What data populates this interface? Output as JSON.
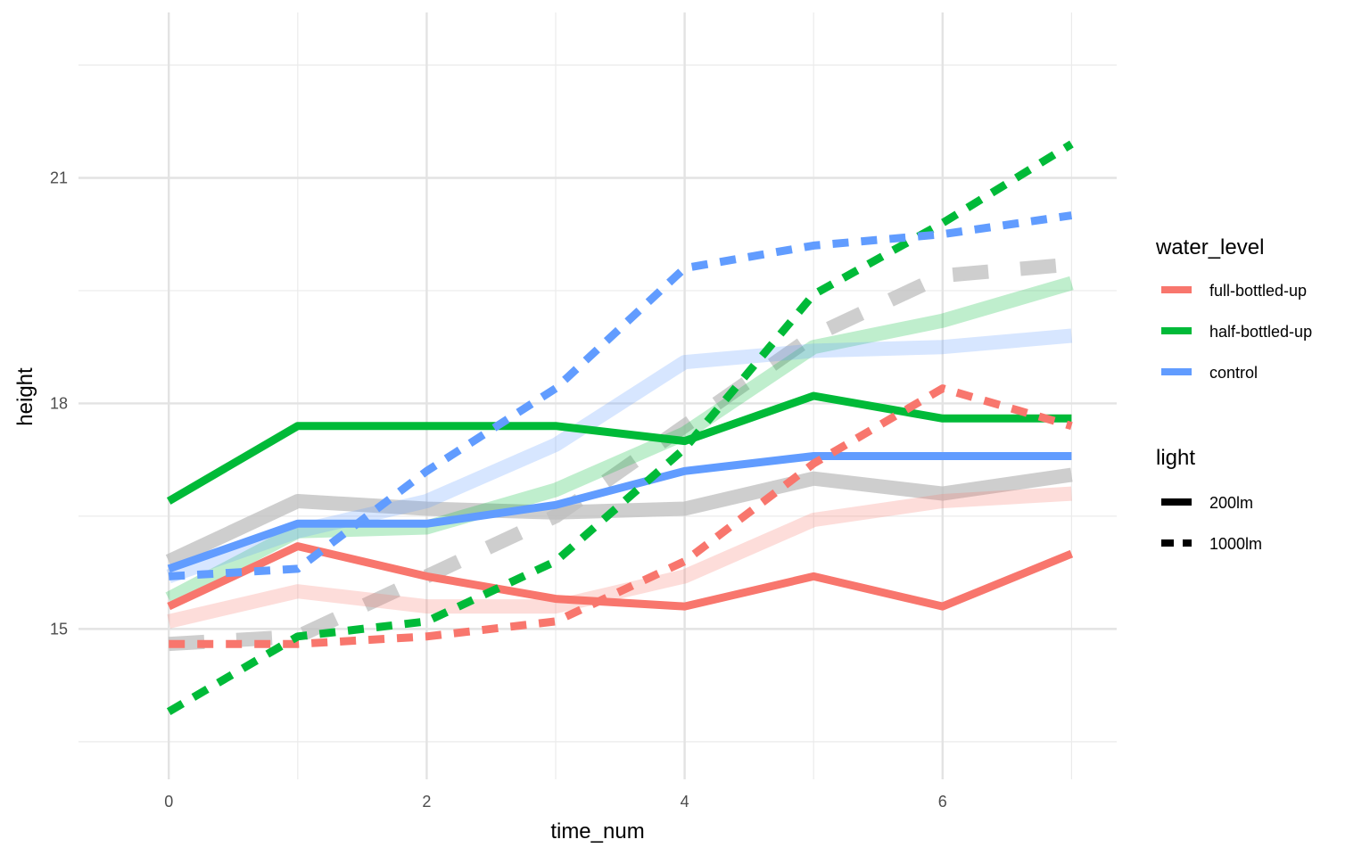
{
  "chart_data": {
    "type": "line",
    "xlabel": "time_num",
    "ylabel": "height",
    "xlim": [
      -0.7,
      7.35
    ],
    "ylim": [
      13.0,
      23.2
    ],
    "x_ticks": [
      0,
      2,
      4,
      6
    ],
    "x_minor": [
      1,
      3,
      5,
      7
    ],
    "y_ticks": [
      15,
      18,
      21
    ],
    "y_minor": [
      13.5,
      16.5,
      19.5,
      22.5
    ],
    "x_tick_labels": [
      "0",
      "2",
      "4",
      "6"
    ],
    "y_tick_labels": [
      "15",
      "18",
      "21"
    ],
    "grid": true,
    "legend_position": "right",
    "legends": [
      {
        "title": "water_level",
        "items": [
          {
            "label": "full-bottled-up",
            "color": "#F8766D"
          },
          {
            "label": "half-bottled-up",
            "color": "#00BA38"
          },
          {
            "label": "control",
            "color": "#619CFF"
          }
        ]
      },
      {
        "title": "light",
        "items": [
          {
            "label": "200lm",
            "linetype": "solid"
          },
          {
            "label": "1000lm",
            "linetype": "dashed"
          }
        ]
      }
    ],
    "x": [
      0,
      1,
      2,
      3,
      4,
      5,
      6,
      7
    ],
    "series": [
      {
        "water_level": "grey",
        "light": "200lm",
        "layer": "background",
        "color": "#BEBEBE",
        "values": [
          15.9,
          16.7,
          16.6,
          16.55,
          16.6,
          17.0,
          16.8,
          17.05
        ]
      },
      {
        "water_level": "grey",
        "light": "1000lm",
        "layer": "background",
        "color": "#BEBEBE",
        "values": [
          14.8,
          14.9,
          15.7,
          16.5,
          17.7,
          18.9,
          19.7,
          19.85
        ]
      },
      {
        "water_level": "full-bottled-up",
        "light": "200lm",
        "layer": "background",
        "color": "#F8766D",
        "values": [
          15.1,
          15.5,
          15.3,
          15.3,
          15.7,
          16.45,
          16.7,
          16.8
        ]
      },
      {
        "water_level": "half-bottled-up",
        "light": "200lm",
        "layer": "background",
        "color": "#00BA38",
        "values": [
          15.4,
          16.3,
          16.35,
          16.85,
          17.6,
          18.75,
          19.1,
          19.6
        ]
      },
      {
        "water_level": "control",
        "light": "200lm",
        "layer": "background",
        "color": "#619CFF",
        "values": [
          15.7,
          16.3,
          16.7,
          17.45,
          18.55,
          18.7,
          18.75,
          18.9
        ]
      },
      {
        "water_level": "full-bottled-up",
        "light": "200lm",
        "layer": "foreground",
        "color": "#F8766D",
        "values": [
          15.3,
          16.1,
          15.7,
          15.4,
          15.3,
          15.7,
          15.3,
          16.0
        ]
      },
      {
        "water_level": "half-bottled-up",
        "light": "200lm",
        "layer": "foreground",
        "color": "#00BA38",
        "values": [
          16.7,
          17.7,
          17.7,
          17.7,
          17.5,
          18.1,
          17.8,
          17.8
        ]
      },
      {
        "water_level": "control",
        "light": "200lm",
        "layer": "foreground",
        "color": "#619CFF",
        "values": [
          15.8,
          16.4,
          16.4,
          16.65,
          17.1,
          17.3,
          17.3,
          17.3
        ]
      },
      {
        "water_level": "full-bottled-up",
        "light": "1000lm",
        "layer": "foreground",
        "color": "#F8766D",
        "values": [
          14.8,
          14.8,
          14.9,
          15.1,
          15.9,
          17.2,
          18.2,
          17.7
        ]
      },
      {
        "water_level": "half-bottled-up",
        "light": "1000lm",
        "layer": "foreground",
        "color": "#00BA38",
        "values": [
          13.9,
          14.9,
          15.1,
          15.9,
          17.4,
          19.45,
          20.4,
          21.45
        ]
      },
      {
        "water_level": "control",
        "light": "1000lm",
        "layer": "foreground",
        "color": "#619CFF",
        "values": [
          15.7,
          15.8,
          17.1,
          18.2,
          19.8,
          20.1,
          20.25,
          20.5
        ]
      }
    ]
  }
}
